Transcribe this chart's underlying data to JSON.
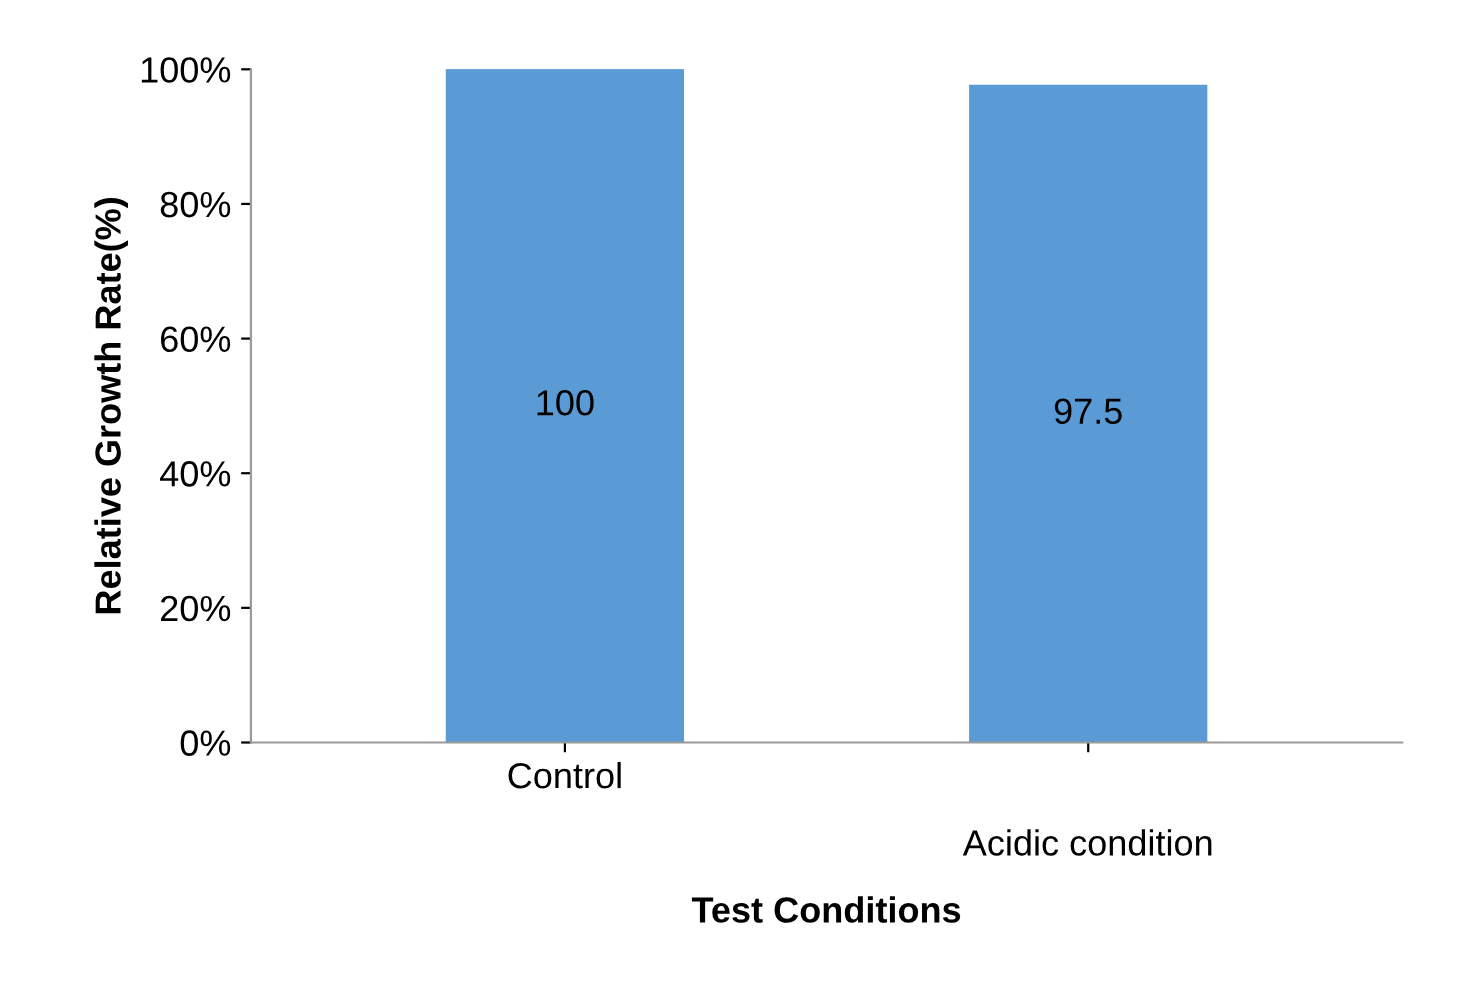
{
  "chart_data": {
    "type": "bar",
    "xlabel": "Test Conditions",
    "ylabel": "Relative Growth Rate(%)",
    "categories": [
      "Control",
      "Acidic condition"
    ],
    "values": [
      100,
      97.5
    ],
    "color": "#5b9bd5",
    "ylim": [
      0,
      100
    ],
    "yticks": [
      {
        "value": 0,
        "label": "0%"
      },
      {
        "value": 20,
        "label": "20%"
      },
      {
        "value": 40,
        "label": "40%"
      },
      {
        "value": 60,
        "label": "60%"
      },
      {
        "value": 80,
        "label": "80%"
      },
      {
        "value": 100,
        "label": "100%"
      }
    ],
    "data_labels": true,
    "grid": false,
    "legend": false
  }
}
